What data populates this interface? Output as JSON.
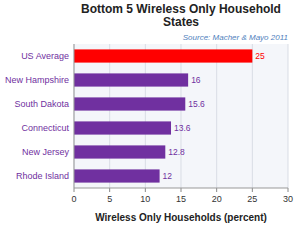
{
  "chart_data": {
    "type": "bar",
    "orientation": "horizontal",
    "title": "Bottom 5 Wireless Only Household\nStates",
    "annotations": [
      "Source: Macher & Mayo 2011"
    ],
    "xlabel": "Wireless Only Households (percent)",
    "categories": [
      "Rhode Island",
      "New Jersey",
      "Connecticut",
      "South Dakota",
      "New Hampshire",
      "US Average"
    ],
    "values": [
      12,
      12.8,
      13.6,
      15.6,
      16,
      25
    ],
    "colors": [
      "#7030A0",
      "#7030A0",
      "#7030A0",
      "#7030A0",
      "#7030A0",
      "#FF0000"
    ],
    "xlim": [
      0,
      30
    ],
    "xticks": [
      0,
      5,
      10,
      15,
      20,
      25,
      30
    ],
    "grid": true,
    "data_labels": true
  }
}
